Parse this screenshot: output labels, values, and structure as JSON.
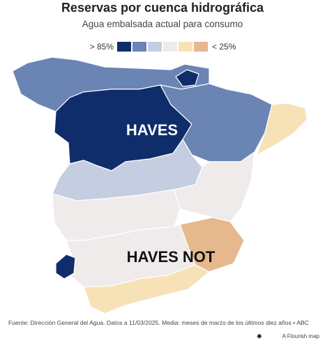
{
  "header": {
    "title": "Reservas por cuenca hidrográfica",
    "subtitle": "Agua embalsada actual para consumo"
  },
  "legend": {
    "high_label": "> 85%",
    "low_label": "< 25%",
    "colors": [
      "#0f2d6b",
      "#6a84b3",
      "#c5cde0",
      "#efebeb",
      "#f7e2b8",
      "#e6b88e"
    ]
  },
  "annotations": {
    "haves": "HAVES",
    "haves_not": "HAVES NOT"
  },
  "footer": {
    "source": "Fuente: Dirección General del Agua. Datos a 11/03/2025. Media: meses de marzo de los últimos diez años • ABC",
    "credit": "A Flourish map"
  }
}
